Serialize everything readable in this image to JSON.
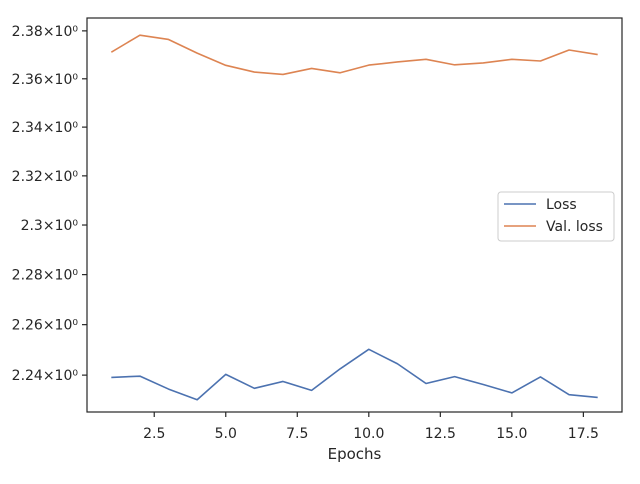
{
  "chart_data": {
    "type": "line",
    "title": "",
    "xlabel": "Epochs",
    "ylabel": "",
    "yscale": "log",
    "xlim": [
      0.15,
      18.85
    ],
    "ylim": [
      2.2255,
      2.3854
    ],
    "x_ticks": [
      {
        "value": 2.5,
        "label": "2.5"
      },
      {
        "value": 5.0,
        "label": "5.0"
      },
      {
        "value": 7.5,
        "label": "7.5"
      },
      {
        "value": 10.0,
        "label": "10.0"
      },
      {
        "value": 12.5,
        "label": "12.5"
      },
      {
        "value": 15.0,
        "label": "15.0"
      },
      {
        "value": 17.5,
        "label": "17.5"
      }
    ],
    "y_ticks": [
      {
        "value": 2.24,
        "label": "2.24×10⁰"
      },
      {
        "value": 2.26,
        "label": "2.26×10⁰"
      },
      {
        "value": 2.28,
        "label": "2.28×10⁰"
      },
      {
        "value": 2.3,
        "label": "2.3×10⁰"
      },
      {
        "value": 2.32,
        "label": "2.32×10⁰"
      },
      {
        "value": 2.34,
        "label": "2.34×10⁰"
      },
      {
        "value": 2.36,
        "label": "2.36×10⁰"
      },
      {
        "value": 2.38,
        "label": "2.38×10⁰"
      }
    ],
    "x": [
      1,
      2,
      3,
      4,
      5,
      6,
      7,
      8,
      9,
      10,
      11,
      12,
      13,
      14,
      15,
      16,
      17,
      18
    ],
    "series": [
      {
        "name": "Loss",
        "color": "#4c72b0",
        "values": [
          2.2391,
          2.2396,
          2.2345,
          2.2303,
          2.2403,
          2.2348,
          2.2375,
          2.234,
          2.2425,
          2.2502,
          2.2445,
          2.2367,
          2.2394,
          2.2363,
          2.233,
          2.2393,
          2.2323,
          2.2312
        ]
      },
      {
        "name": "Val. loss",
        "color": "#dd8452",
        "values": [
          2.3711,
          2.3782,
          2.3764,
          2.3707,
          2.3656,
          2.3628,
          2.3618,
          2.3643,
          2.3625,
          2.3657,
          2.367,
          2.3681,
          2.3658,
          2.3666,
          2.3681,
          2.3674,
          2.372,
          2.3701
        ]
      }
    ],
    "grid": false,
    "legend_position": "center-right"
  }
}
